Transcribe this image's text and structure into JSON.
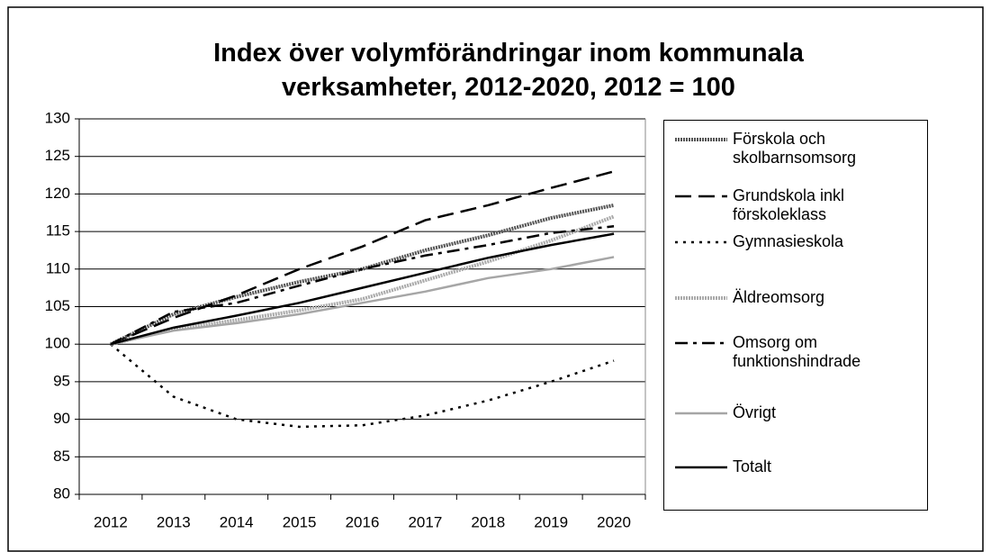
{
  "chart_data": {
    "type": "line",
    "title": "Index över volymförändringar inom kommunala verksamheter, 2012-2020, 2012 = 100",
    "categories": [
      "2012",
      "2013",
      "2014",
      "2015",
      "2016",
      "2017",
      "2018",
      "2019",
      "2020"
    ],
    "series": [
      {
        "name": "Förskola och skolbarnsomsorg",
        "color": "#555555",
        "line_style": "textured",
        "values": [
          100,
          104,
          106.3,
          108.3,
          110,
          112.5,
          114.5,
          116.8,
          118.5
        ]
      },
      {
        "name": "Grundskola inkl förskoleklass",
        "color": "#000000",
        "line_style": "long-dash",
        "values": [
          100,
          103.5,
          106.5,
          110,
          113,
          116.5,
          118.5,
          120.8,
          123
        ]
      },
      {
        "name": "Gymnasieskola",
        "color": "#000000",
        "line_style": "dotted",
        "values": [
          100,
          93,
          90,
          89,
          89.2,
          90.5,
          92.5,
          95,
          97.8
        ]
      },
      {
        "name": "Äldreomsorg",
        "color": "#aaaaaa",
        "line_style": "textured",
        "values": [
          100,
          102,
          103.2,
          104.5,
          106,
          108.5,
          111,
          113.8,
          117
        ]
      },
      {
        "name": "Omsorg om funktionshindrade",
        "color": "#000000",
        "line_style": "dash-dot",
        "values": [
          100,
          104.3,
          105.5,
          107.8,
          110,
          111.8,
          113.2,
          114.8,
          115.7
        ]
      },
      {
        "name": "Övrigt",
        "color": "#a6a6a6",
        "line_style": "solid",
        "values": [
          100,
          101.8,
          102.8,
          104,
          105.5,
          107,
          108.8,
          110,
          111.6
        ]
      },
      {
        "name": "Totalt",
        "color": "#000000",
        "line_style": "solid",
        "values": [
          100,
          102.2,
          103.8,
          105.5,
          107.5,
          109.5,
          111.5,
          113.2,
          114.7
        ]
      }
    ],
    "ylim": [
      80,
      130
    ],
    "yticks": [
      80,
      85,
      90,
      95,
      100,
      105,
      110,
      115,
      120,
      125,
      130
    ],
    "grid": true,
    "legend": "right"
  }
}
